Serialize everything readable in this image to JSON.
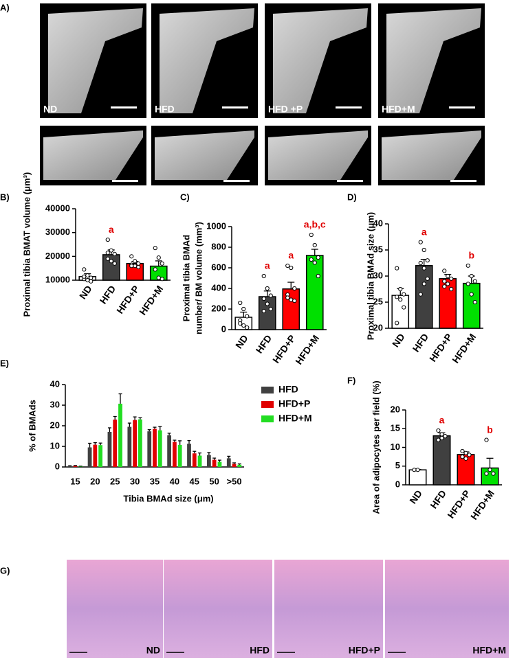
{
  "images": {
    "panel": "A)",
    "labels": [
      "ND",
      "HFD",
      "HFD +P",
      "HFD+M"
    ]
  },
  "chart_data": [
    {
      "type": "bar",
      "panel": "B)",
      "ylabel": [
        "Proximal tibia BMAT volume (μm³)"
      ],
      "categories": [
        "ND",
        "HFD",
        "HFD+P",
        "HFD+M"
      ],
      "values": [
        11500,
        20700,
        17000,
        15900
      ],
      "errors": [
        1200,
        2000,
        900,
        2200
      ],
      "points": [
        [
          14500,
          12000,
          11000,
          10500,
          10000,
          9500,
          11500
        ],
        [
          27000,
          22500,
          21000,
          19000,
          18000,
          17000,
          21500
        ],
        [
          20000,
          18000,
          17000,
          16500,
          16000,
          15500,
          16000
        ],
        [
          23500,
          19500,
          17000,
          14500,
          11000,
          10500
        ]
      ],
      "colors": [
        "#ffffff",
        "#404040",
        "#ff0000",
        "#00e000"
      ],
      "annotations": [
        null,
        "a",
        null,
        null
      ],
      "ylim": [
        10000,
        40000
      ],
      "yticks": [
        10000,
        20000,
        30000,
        40000
      ]
    },
    {
      "type": "bar",
      "panel": "C)",
      "ylabel": [
        "Proximal tibia BMAd",
        "number/ BM volume (mm³)"
      ],
      "categories": [
        "ND",
        "HFD",
        "HFD+P",
        "HFD+M"
      ],
      "values": [
        120,
        320,
        395,
        720
      ],
      "errors": [
        50,
        55,
        65,
        60
      ],
      "points": [
        [
          260,
          200,
          130,
          90,
          40,
          20,
          60
        ],
        [
          520,
          400,
          330,
          300,
          250,
          200,
          180
        ],
        [
          620,
          600,
          400,
          340,
          290,
          280,
          310
        ],
        [
          920,
          820,
          700,
          680,
          650,
          520
        ]
      ],
      "colors": [
        "#ffffff",
        "#404040",
        "#ff0000",
        "#00e000"
      ],
      "annotations": [
        null,
        "a",
        "a",
        "a,b,c"
      ],
      "ylim": [
        0,
        1000
      ],
      "yticks": [
        0,
        200,
        400,
        600,
        800,
        1000
      ]
    },
    {
      "type": "bar",
      "panel": "D)",
      "ylabel": [
        "Proximal tibia BMAd size (μm)"
      ],
      "categories": [
        "ND",
        "HFD",
        "HFD+P",
        "HFD+M"
      ],
      "values": [
        26.3,
        32,
        29.5,
        28.6
      ],
      "errors": [
        1.3,
        1.2,
        0.8,
        1.4
      ],
      "points": [
        [
          31.5,
          27.5,
          26.5,
          26,
          25.5,
          24,
          21
        ],
        [
          36.5,
          35,
          33,
          32.5,
          31.5,
          29.5,
          26.5,
          28.5
        ],
        [
          31,
          30,
          29.5,
          29,
          28.5,
          27.5,
          28
        ],
        [
          32,
          30,
          29,
          28.5,
          26.5,
          25
        ]
      ],
      "colors": [
        "#ffffff",
        "#404040",
        "#ff0000",
        "#00e000"
      ],
      "annotations": [
        null,
        "a",
        null,
        "b"
      ],
      "ylim": [
        20,
        40
      ],
      "yticks": [
        20,
        25,
        30,
        35,
        40
      ]
    },
    {
      "type": "bar",
      "panel": "E)",
      "ylabel": [
        "% of BMAds"
      ],
      "xlabel": "Tibia BMAd size (μm)",
      "categories": [
        "15",
        "20",
        "25",
        "30",
        "35",
        "40",
        "45",
        "50",
        ">50"
      ],
      "series": [
        {
          "name": "HFD",
          "color": "#404040",
          "values": [
            0.4,
            9.5,
            17,
            19.5,
            17.3,
            15.4,
            11.3,
            5.8,
            4.2
          ],
          "errors": [
            0.2,
            2,
            2,
            1.8,
            0.8,
            1,
            1.5,
            1.2,
            1
          ]
        },
        {
          "name": "HFD+P",
          "color": "#e00000",
          "values": [
            0.5,
            10.8,
            23,
            22.8,
            18.5,
            12.2,
            6.6,
            3.5,
            1.5
          ],
          "errors": [
            0.2,
            1,
            1.5,
            1.5,
            0.8,
            0.8,
            1,
            0.8,
            0.5
          ]
        },
        {
          "name": "HFD+M",
          "color": "#22dd22",
          "values": [
            0.3,
            10.6,
            30.7,
            23.1,
            17.8,
            10.7,
            5.5,
            2.5,
            1.1
          ],
          "errors": [
            0.1,
            1,
            4.8,
            0.8,
            1.8,
            2,
            1.3,
            0.8,
            0.4
          ]
        }
      ],
      "legend": "upper right",
      "ylim": [
        0,
        40
      ],
      "yticks": [
        0,
        10,
        20,
        30,
        40
      ]
    },
    {
      "type": "bar",
      "panel": "F)",
      "ylabel": [
        "Area of adipocytes per field (%)"
      ],
      "categories": [
        "ND",
        "HFD",
        "HFD+P",
        "HFD+M"
      ],
      "values": [
        4.0,
        13.1,
        8.1,
        4.5
      ],
      "errors": [
        0.1,
        0.8,
        0.7,
        2.6
      ],
      "points": [
        [
          4,
          4
        ],
        [
          14.5,
          13.5,
          13,
          12,
          12.5
        ],
        [
          9,
          8.5,
          8,
          7.5,
          7
        ],
        [
          12,
          4,
          3,
          3
        ]
      ],
      "colors": [
        "#ffffff",
        "#404040",
        "#ff0000",
        "#00e000"
      ],
      "annotations": [
        null,
        "a",
        null,
        "b"
      ],
      "ylim": [
        0,
        20
      ],
      "yticks": [
        0,
        5,
        10,
        15,
        20
      ]
    }
  ],
  "histology": {
    "panel": "G)",
    "labels": [
      "ND",
      "HFD",
      "HFD+P",
      "HFD+M"
    ]
  }
}
